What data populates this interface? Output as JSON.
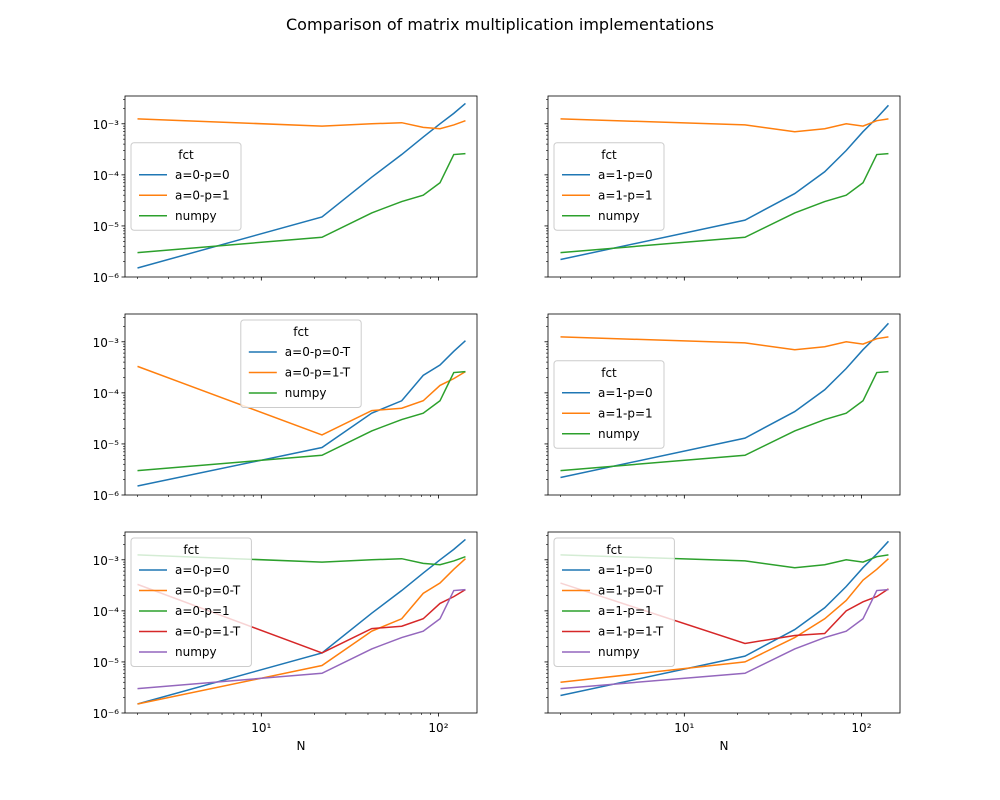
{
  "figure": {
    "title": "Comparison of matrix multiplication implementations"
  },
  "chart_data": [
    {
      "type": "line",
      "xscale": "log",
      "yscale": "log",
      "xlim": [
        1.7,
        165
      ],
      "ylim": [
        1e-06,
        0.0035
      ],
      "xlabel": "",
      "legend_title": "fct",
      "legend_position": "center-left",
      "series": [
        {
          "name": "a=0-p=0",
          "color": "#1f77b4",
          "x": [
            2,
            22,
            42,
            62,
            82,
            102,
            122,
            142
          ],
          "y": [
            1.5e-06,
            1.5e-05,
            9e-05,
            0.00025,
            0.00055,
            0.001,
            0.0016,
            0.0025
          ]
        },
        {
          "name": "a=0-p=1",
          "color": "#ff7f0e",
          "x": [
            2,
            22,
            42,
            62,
            82,
            102,
            122,
            142
          ],
          "y": [
            0.00125,
            0.0009,
            0.001,
            0.00105,
            0.00085,
            0.0008,
            0.00095,
            0.00115
          ]
        },
        {
          "name": "numpy",
          "color": "#2ca02c",
          "x": [
            2,
            22,
            42,
            62,
            82,
            102,
            122,
            142
          ],
          "y": [
            3e-06,
            6e-06,
            1.8e-05,
            3e-05,
            4e-05,
            7e-05,
            0.00025,
            0.00026
          ]
        }
      ]
    },
    {
      "type": "line",
      "xscale": "log",
      "yscale": "log",
      "xlim": [
        1.7,
        165
      ],
      "ylim": [
        1e-06,
        0.0035
      ],
      "xlabel": "",
      "legend_title": "fct",
      "legend_position": "center-left",
      "series": [
        {
          "name": "a=1-p=0",
          "color": "#1f77b4",
          "x": [
            2,
            22,
            42,
            62,
            82,
            102,
            122,
            142
          ],
          "y": [
            2.2e-06,
            1.3e-05,
            4.3e-05,
            0.000115,
            0.0003,
            0.0007,
            0.0013,
            0.0023
          ]
        },
        {
          "name": "a=1-p=1",
          "color": "#ff7f0e",
          "x": [
            2,
            22,
            42,
            62,
            82,
            102,
            122,
            142
          ],
          "y": [
            0.00125,
            0.00095,
            0.0007,
            0.0008,
            0.001,
            0.0009,
            0.00115,
            0.00125
          ]
        },
        {
          "name": "numpy",
          "color": "#2ca02c",
          "x": [
            2,
            22,
            42,
            62,
            82,
            102,
            122,
            142
          ],
          "y": [
            3e-06,
            6e-06,
            1.8e-05,
            3e-05,
            4e-05,
            7e-05,
            0.00025,
            0.00026
          ]
        }
      ]
    },
    {
      "type": "line",
      "xscale": "log",
      "yscale": "log",
      "xlim": [
        1.7,
        165
      ],
      "ylim": [
        1e-06,
        0.0035
      ],
      "xlabel": "",
      "legend_title": "fct",
      "legend_position": "top-center",
      "series": [
        {
          "name": "a=0-p=0-T",
          "color": "#1f77b4",
          "x": [
            2,
            22,
            42,
            62,
            82,
            102,
            122,
            142
          ],
          "y": [
            1.5e-06,
            8.5e-06,
            4e-05,
            7e-05,
            0.00022,
            0.00035,
            0.00065,
            0.00105
          ]
        },
        {
          "name": "a=0-p=1-T",
          "color": "#ff7f0e",
          "x": [
            2,
            22,
            42,
            62,
            82,
            102,
            122,
            142
          ],
          "y": [
            0.00033,
            1.5e-05,
            4.5e-05,
            5e-05,
            7e-05,
            0.00014,
            0.00019,
            0.00026
          ]
        },
        {
          "name": "numpy",
          "color": "#2ca02c",
          "x": [
            2,
            22,
            42,
            62,
            82,
            102,
            122,
            142
          ],
          "y": [
            3e-06,
            6e-06,
            1.8e-05,
            3e-05,
            4e-05,
            7e-05,
            0.00025,
            0.00026
          ]
        }
      ]
    },
    {
      "type": "line",
      "xscale": "log",
      "yscale": "log",
      "xlim": [
        1.7,
        165
      ],
      "ylim": [
        1e-06,
        0.0035
      ],
      "xlabel": "",
      "legend_title": "fct",
      "legend_position": "center-left",
      "series": [
        {
          "name": "a=1-p=0",
          "color": "#1f77b4",
          "x": [
            2,
            22,
            42,
            62,
            82,
            102,
            122,
            142
          ],
          "y": [
            2.2e-06,
            1.3e-05,
            4.3e-05,
            0.000115,
            0.0003,
            0.0007,
            0.0013,
            0.0023
          ]
        },
        {
          "name": "a=1-p=1",
          "color": "#ff7f0e",
          "x": [
            2,
            22,
            42,
            62,
            82,
            102,
            122,
            142
          ],
          "y": [
            0.00125,
            0.00095,
            0.0007,
            0.0008,
            0.001,
            0.0009,
            0.00115,
            0.00125
          ]
        },
        {
          "name": "numpy",
          "color": "#2ca02c",
          "x": [
            2,
            22,
            42,
            62,
            82,
            102,
            122,
            142
          ],
          "y": [
            3e-06,
            6e-06,
            1.8e-05,
            3e-05,
            4e-05,
            7e-05,
            0.00025,
            0.00026
          ]
        }
      ]
    },
    {
      "type": "line",
      "xscale": "log",
      "yscale": "log",
      "xlim": [
        1.7,
        165
      ],
      "ylim": [
        1e-06,
        0.0035
      ],
      "xlabel": "N",
      "legend_title": "fct",
      "legend_position": "top-left",
      "series": [
        {
          "name": "a=0-p=0",
          "color": "#1f77b4",
          "x": [
            2,
            22,
            42,
            62,
            82,
            102,
            122,
            142
          ],
          "y": [
            1.5e-06,
            1.5e-05,
            9e-05,
            0.00025,
            0.00055,
            0.001,
            0.0016,
            0.0025
          ]
        },
        {
          "name": "a=0-p=0-T",
          "color": "#ff7f0e",
          "x": [
            2,
            22,
            42,
            62,
            82,
            102,
            122,
            142
          ],
          "y": [
            1.5e-06,
            8.5e-06,
            4e-05,
            7e-05,
            0.00022,
            0.00035,
            0.00065,
            0.00105
          ]
        },
        {
          "name": "a=0-p=1",
          "color": "#2ca02c",
          "x": [
            2,
            22,
            42,
            62,
            82,
            102,
            122,
            142
          ],
          "y": [
            0.00125,
            0.0009,
            0.001,
            0.00105,
            0.00085,
            0.0008,
            0.00095,
            0.00115
          ]
        },
        {
          "name": "a=0-p=1-T",
          "color": "#d62728",
          "x": [
            2,
            22,
            42,
            62,
            82,
            102,
            122,
            142
          ],
          "y": [
            0.00033,
            1.5e-05,
            4.5e-05,
            5e-05,
            7e-05,
            0.00014,
            0.00019,
            0.00026
          ]
        },
        {
          "name": "numpy",
          "color": "#9467bd",
          "x": [
            2,
            22,
            42,
            62,
            82,
            102,
            122,
            142
          ],
          "y": [
            3e-06,
            6e-06,
            1.8e-05,
            3e-05,
            4e-05,
            7e-05,
            0.00025,
            0.00026
          ]
        }
      ]
    },
    {
      "type": "line",
      "xscale": "log",
      "yscale": "log",
      "xlim": [
        1.7,
        165
      ],
      "ylim": [
        1e-06,
        0.0035
      ],
      "xlabel": "N",
      "legend_title": "fct",
      "legend_position": "top-left",
      "series": [
        {
          "name": "a=1-p=0",
          "color": "#1f77b4",
          "x": [
            2,
            22,
            42,
            62,
            82,
            102,
            122,
            142
          ],
          "y": [
            2.2e-06,
            1.3e-05,
            4.3e-05,
            0.000115,
            0.0003,
            0.0007,
            0.0013,
            0.0023
          ]
        },
        {
          "name": "a=1-p=0-T",
          "color": "#ff7f0e",
          "x": [
            2,
            22,
            42,
            62,
            82,
            102,
            122,
            142
          ],
          "y": [
            4e-06,
            1e-05,
            3e-05,
            7e-05,
            0.00016,
            0.0004,
            0.00065,
            0.00105
          ]
        },
        {
          "name": "a=1-p=1",
          "color": "#2ca02c",
          "x": [
            2,
            22,
            42,
            62,
            82,
            102,
            122,
            142
          ],
          "y": [
            0.00125,
            0.00095,
            0.0007,
            0.0008,
            0.001,
            0.0009,
            0.00115,
            0.00125
          ]
        },
        {
          "name": "a=1-p=1-T",
          "color": "#d62728",
          "x": [
            2,
            22,
            42,
            62,
            82,
            102,
            122,
            142
          ],
          "y": [
            0.00035,
            2.3e-05,
            3.3e-05,
            3.6e-05,
            0.0001,
            0.00015,
            0.00019,
            0.00027
          ]
        },
        {
          "name": "numpy",
          "color": "#9467bd",
          "x": [
            2,
            22,
            42,
            62,
            82,
            102,
            122,
            142
          ],
          "y": [
            3e-06,
            6e-06,
            1.8e-05,
            3e-05,
            4e-05,
            7e-05,
            0.00025,
            0.00026
          ]
        }
      ]
    }
  ]
}
